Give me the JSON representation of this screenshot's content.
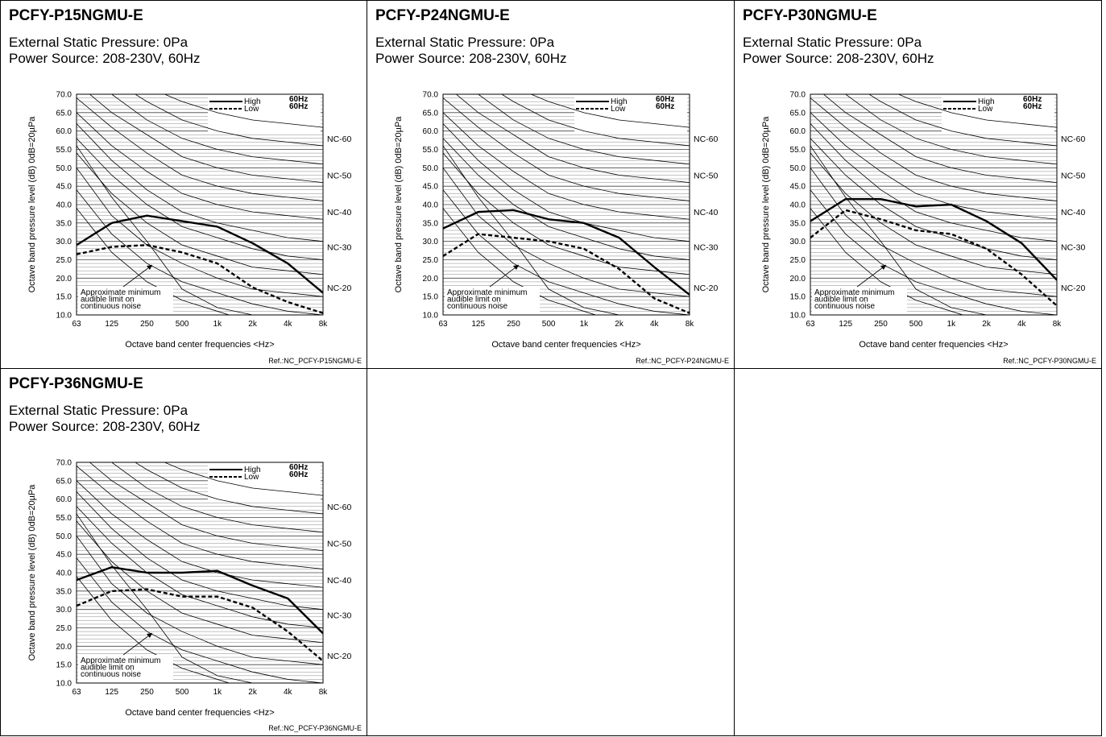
{
  "chart_data": [
    {
      "type": "line",
      "title": "PCFY-P15NGMU-E",
      "subtitle_lines": [
        "External Static Pressure: 0Pa",
        "Power Source: 208-230V, 60Hz"
      ],
      "xlabel": "Octave band center frequencies <Hz>",
      "ylabel": "Octave band pressure level (dB) 0dB=20µPa",
      "categories": [
        "63",
        "125",
        "250",
        "500",
        "1k",
        "2k",
        "4k",
        "8k"
      ],
      "ylim": [
        10,
        70
      ],
      "yticks": [
        "10.0",
        "15.0",
        "20.0",
        "25.0",
        "30.0",
        "35.0",
        "40.0",
        "45.0",
        "50.0",
        "55.0",
        "60.0",
        "65.0",
        "70.0"
      ],
      "series": [
        {
          "name": "High",
          "freq": "60Hz",
          "values": [
            29,
            35,
            37,
            35.5,
            34,
            29.5,
            24,
            16
          ]
        },
        {
          "name": "Low",
          "freq": "60Hz",
          "values": [
            26.5,
            28.5,
            29,
            27,
            24,
            17.5,
            13.5,
            10.5
          ]
        }
      ],
      "nc_labels": [
        "NC-60",
        "NC-50",
        "NC-40",
        "NC-30",
        "NC-20"
      ],
      "annotation": [
        "Approximate minimum",
        "audible limit on",
        "continuous noise"
      ],
      "ref": "Ref.:NC_PCFY-P15NGMU-E"
    },
    {
      "type": "line",
      "title": "PCFY-P24NGMU-E",
      "subtitle_lines": [
        "External Static Pressure: 0Pa",
        "Power Source: 208-230V, 60Hz"
      ],
      "xlabel": "Octave band center frequencies <Hz>",
      "ylabel": "Octave band pressure level (dB) 0dB=20µPa",
      "categories": [
        "63",
        "125",
        "250",
        "500",
        "1k",
        "2k",
        "4k",
        "8k"
      ],
      "ylim": [
        10,
        70
      ],
      "yticks": [
        "10.0",
        "15.0",
        "20.0",
        "25.0",
        "30.0",
        "35.0",
        "40.0",
        "45.0",
        "50.0",
        "55.0",
        "60.0",
        "65.0",
        "70.0"
      ],
      "series": [
        {
          "name": "High",
          "freq": "60Hz",
          "values": [
            33.5,
            38,
            38.5,
            36,
            35,
            31,
            23,
            15.5
          ]
        },
        {
          "name": "Low",
          "freq": "60Hz",
          "values": [
            26,
            32,
            31,
            30,
            28,
            22.5,
            14.5,
            10.5
          ]
        }
      ],
      "nc_labels": [
        "NC-60",
        "NC-50",
        "NC-40",
        "NC-30",
        "NC-20"
      ],
      "annotation": [
        "Approximate minimum",
        "audible limit on",
        "continuous noise"
      ],
      "ref": "Ref.:NC_PCFY-P24NGMU-E"
    },
    {
      "type": "line",
      "title": "PCFY-P30NGMU-E",
      "subtitle_lines": [
        "External Static Pressure: 0Pa",
        "Power Source: 208-230V, 60Hz"
      ],
      "xlabel": "Octave band center frequencies <Hz>",
      "ylabel": "Octave band pressure level (dB) 0dB=20µPa",
      "categories": [
        "63",
        "125",
        "250",
        "500",
        "1k",
        "2k",
        "4k",
        "8k"
      ],
      "ylim": [
        10,
        70
      ],
      "yticks": [
        "10.0",
        "15.0",
        "20.0",
        "25.0",
        "30.0",
        "35.0",
        "40.0",
        "45.0",
        "50.0",
        "55.0",
        "60.0",
        "65.0",
        "70.0"
      ],
      "series": [
        {
          "name": "High",
          "freq": "60Hz",
          "values": [
            35.5,
            41.5,
            41.5,
            39.5,
            40,
            35.5,
            29.5,
            19.5
          ]
        },
        {
          "name": "Low",
          "freq": "60Hz",
          "values": [
            31,
            38.5,
            36,
            33,
            32,
            28,
            21,
            12.5
          ]
        }
      ],
      "nc_labels": [
        "NC-60",
        "NC-50",
        "NC-40",
        "NC-30",
        "NC-20"
      ],
      "annotation": [
        "Approximate minimum",
        "audible limit on",
        "continuous noise"
      ],
      "ref": "Ref.:NC_PCFY-P30NGMU-E"
    },
    {
      "type": "line",
      "title": "PCFY-P36NGMU-E",
      "subtitle_lines": [
        "External Static Pressure: 0Pa",
        "Power Source: 208-230V, 60Hz"
      ],
      "xlabel": "Octave band center frequencies <Hz>",
      "ylabel": "Octave band pressure level (dB) 0dB=20µPa",
      "categories": [
        "63",
        "125",
        "250",
        "500",
        "1k",
        "2k",
        "4k",
        "8k"
      ],
      "ylim": [
        10,
        70
      ],
      "yticks": [
        "10.0",
        "15.0",
        "20.0",
        "25.0",
        "30.0",
        "35.0",
        "40.0",
        "45.0",
        "50.0",
        "55.0",
        "60.0",
        "65.0",
        "70.0"
      ],
      "series": [
        {
          "name": "High",
          "freq": "60Hz",
          "values": [
            38,
            41.5,
            40,
            40,
            40.5,
            36.5,
            33,
            23.5
          ]
        },
        {
          "name": "Low",
          "freq": "60Hz",
          "values": [
            31,
            35,
            35.5,
            33.5,
            33.5,
            30.5,
            24,
            16
          ]
        }
      ],
      "nc_labels": [
        "NC-60",
        "NC-50",
        "NC-40",
        "NC-30",
        "NC-20"
      ],
      "annotation": [
        "Approximate minimum",
        "audible limit on",
        "continuous noise"
      ],
      "ref": "Ref.:NC_PCFY-P36NGMU-E"
    }
  ],
  "nc_curves": [
    {
      "values": [
        39,
        27,
        19,
        14,
        11,
        8,
        6,
        4
      ]
    },
    {
      "values": [
        44,
        32,
        24,
        19,
        16,
        13,
        11,
        10
      ]
    },
    {
      "values": [
        50,
        37,
        29,
        24,
        20,
        17,
        16,
        15
      ]
    },
    {
      "values": [
        54,
        43,
        35,
        29,
        26,
        23,
        22,
        21
      ]
    },
    {
      "values": [
        58,
        48,
        40,
        34,
        31,
        28,
        26,
        25
      ]
    },
    {
      "values": [
        62,
        52,
        44,
        38,
        35,
        33,
        31,
        30
      ]
    },
    {
      "values": [
        65,
        56,
        49,
        43,
        40,
        38,
        37,
        36
      ]
    },
    {
      "values": [
        69,
        61,
        54,
        48,
        45,
        43,
        42,
        41
      ]
    },
    {
      "values": [
        73,
        65,
        59,
        53,
        50,
        48,
        47,
        46
      ]
    },
    {
      "values": [
        77,
        70,
        63,
        58,
        55,
        53,
        52,
        51
      ]
    },
    {
      "values": [
        80,
        74,
        68,
        63,
        60,
        58,
        57,
        56
      ]
    },
    {
      "values": [
        84,
        78,
        72,
        68,
        65,
        63,
        62,
        61
      ]
    }
  ],
  "audible_limit": {
    "values": [
      56,
      42,
      30,
      17,
      12,
      10,
      9,
      9
    ]
  }
}
